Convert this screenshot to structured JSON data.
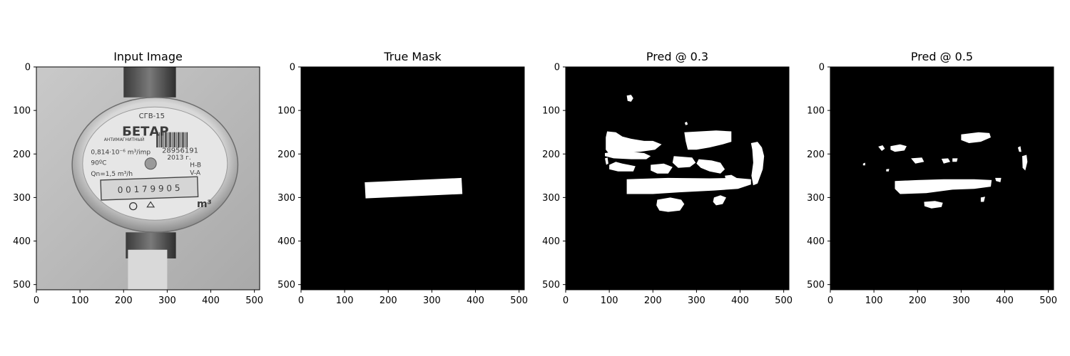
{
  "chart_data": [
    {
      "type": "image",
      "title": "Input Image",
      "xlim": [
        0,
        512
      ],
      "ylim": [
        512,
        0
      ],
      "xticks": [
        0,
        100,
        200,
        300,
        400,
        500
      ],
      "yticks": [
        0,
        100,
        200,
        300,
        400,
        500
      ],
      "image_text": {
        "model": "СГВ-15",
        "brand": "БЕТАР",
        "label": "АНТИМАГНИТНЫЙ",
        "serial": "28956191",
        "year": "2013 г.",
        "pulse": "0,814·10⁻⁶ m³/imp",
        "temp": "90ºC",
        "flow": "Qn=1,5 m³/h",
        "class1": "H-B",
        "class2": "V-A",
        "digits": "0 0 1 7 9 9 0 5",
        "unit": "m³"
      }
    },
    {
      "type": "image",
      "title": "True Mask",
      "xlim": [
        0,
        512
      ],
      "ylim": [
        512,
        0
      ],
      "xticks": [
        0,
        100,
        200,
        300,
        400,
        500
      ],
      "yticks": [
        0,
        100,
        200,
        300,
        400,
        500
      ],
      "mask_regions": [
        {
          "shape": "polygon",
          "points": [
            [
              146,
              265
            ],
            [
              368,
              255
            ],
            [
              370,
              292
            ],
            [
              148,
              302
            ]
          ]
        }
      ]
    },
    {
      "type": "image",
      "title": "Pred @ 0.3",
      "xlim": [
        0,
        512
      ],
      "ylim": [
        512,
        0
      ],
      "xticks": [
        0,
        100,
        200,
        300,
        400,
        500
      ],
      "yticks": [
        0,
        100,
        200,
        300,
        400,
        500
      ],
      "mask_regions": [
        {
          "shape": "polygon",
          "points": [
            [
              140,
              258
            ],
            [
              235,
              255
            ],
            [
              330,
              256
            ],
            [
              390,
              255
            ],
            [
              425,
              258
            ],
            [
              425,
              270
            ],
            [
              395,
              280
            ],
            [
              340,
              284
            ],
            [
              260,
              288
            ],
            [
              200,
              292
            ],
            [
              140,
              292
            ]
          ]
        },
        {
          "shape": "polygon",
          "points": [
            [
              92,
              162
            ],
            [
              95,
              148
            ],
            [
              115,
              150
            ],
            [
              130,
              160
            ],
            [
              150,
              165
            ],
            [
              180,
              170
            ],
            [
              200,
              170
            ],
            [
              220,
              178
            ],
            [
              205,
              190
            ],
            [
              170,
              195
            ],
            [
              130,
              198
            ],
            [
              100,
              200
            ],
            [
              92,
              190
            ]
          ]
        },
        {
          "shape": "polygon",
          "points": [
            [
              90,
              198
            ],
            [
              110,
              195
            ],
            [
              150,
              195
            ],
            [
              180,
              198
            ],
            [
              195,
              205
            ],
            [
              185,
              212
            ],
            [
              150,
              212
            ],
            [
              110,
              210
            ],
            [
              90,
              205
            ]
          ]
        },
        {
          "shape": "polygon",
          "points": [
            [
              272,
              150
            ],
            [
              345,
              146
            ],
            [
              380,
              148
            ],
            [
              380,
              172
            ],
            [
              360,
              178
            ],
            [
              330,
              185
            ],
            [
              300,
              190
            ],
            [
              280,
              190
            ],
            [
              275,
              170
            ]
          ]
        },
        {
          "shape": "polygon",
          "points": [
            [
              248,
              205
            ],
            [
              290,
              208
            ],
            [
              298,
              220
            ],
            [
              285,
              230
            ],
            [
              258,
              232
            ],
            [
              245,
              220
            ]
          ]
        },
        {
          "shape": "polygon",
          "points": [
            [
              305,
              212
            ],
            [
              335,
              215
            ],
            [
              355,
              220
            ],
            [
              365,
              235
            ],
            [
              355,
              245
            ],
            [
              330,
              240
            ],
            [
              310,
              232
            ],
            [
              300,
              222
            ]
          ]
        },
        {
          "shape": "polygon",
          "points": [
            [
              425,
              175
            ],
            [
              440,
              172
            ],
            [
              450,
              185
            ],
            [
              455,
              205
            ],
            [
              452,
              235
            ],
            [
              440,
              268
            ],
            [
              430,
              272
            ],
            [
              426,
              250
            ],
            [
              430,
              220
            ],
            [
              428,
              190
            ]
          ]
        },
        {
          "shape": "polygon",
          "points": [
            [
              100,
              225
            ],
            [
              115,
              218
            ],
            [
              130,
              222
            ],
            [
              145,
              225
            ],
            [
              160,
              228
            ],
            [
              155,
              240
            ],
            [
              120,
              240
            ],
            [
              100,
              235
            ]
          ]
        },
        {
          "shape": "polygon",
          "points": [
            [
              195,
              225
            ],
            [
              225,
              222
            ],
            [
              245,
              230
            ],
            [
              235,
              245
            ],
            [
              210,
              245
            ],
            [
              195,
              238
            ]
          ]
        },
        {
          "shape": "polygon",
          "points": [
            [
              210,
              305
            ],
            [
              240,
              300
            ],
            [
              265,
              305
            ],
            [
              272,
              315
            ],
            [
              262,
              330
            ],
            [
              235,
              333
            ],
            [
              215,
              330
            ],
            [
              208,
              318
            ]
          ]
        },
        {
          "shape": "polygon",
          "points": [
            [
              340,
              300
            ],
            [
              355,
              295
            ],
            [
              368,
              300
            ],
            [
              360,
              315
            ],
            [
              345,
              318
            ],
            [
              338,
              310
            ]
          ]
        },
        {
          "shape": "polygon",
          "points": [
            [
              365,
              250
            ],
            [
              380,
              248
            ],
            [
              392,
              255
            ],
            [
              385,
              265
            ],
            [
              368,
              262
            ]
          ]
        },
        {
          "shape": "polygon",
          "points": [
            [
              140,
              66
            ],
            [
              150,
              64
            ],
            [
              155,
              72
            ],
            [
              150,
              80
            ],
            [
              142,
              78
            ]
          ]
        },
        {
          "shape": "polygon",
          "points": [
            [
              273,
              128
            ],
            [
              278,
              126
            ],
            [
              280,
              132
            ],
            [
              275,
              134
            ]
          ]
        },
        {
          "shape": "polygon",
          "points": [
            [
              90,
              210
            ],
            [
              96,
              208
            ],
            [
              98,
              222
            ],
            [
              93,
              225
            ]
          ]
        }
      ]
    },
    {
      "type": "image",
      "title": "Pred @ 0.5",
      "xlim": [
        0,
        512
      ],
      "ylim": [
        512,
        0
      ],
      "xticks": [
        0,
        100,
        200,
        300,
        400,
        500
      ],
      "yticks": [
        0,
        100,
        200,
        300,
        400,
        500
      ],
      "mask_regions": [
        {
          "shape": "polygon",
          "points": [
            [
              148,
              262
            ],
            [
              200,
              260
            ],
            [
              260,
              258
            ],
            [
              330,
              258
            ],
            [
              370,
              260
            ],
            [
              368,
              275
            ],
            [
              330,
              280
            ],
            [
              280,
              282
            ],
            [
              220,
              290
            ],
            [
              160,
              292
            ],
            [
              148,
              280
            ]
          ]
        },
        {
          "shape": "polygon",
          "points": [
            [
              300,
              155
            ],
            [
              340,
              150
            ],
            [
              365,
              152
            ],
            [
              368,
              162
            ],
            [
              345,
              172
            ],
            [
              318,
              175
            ],
            [
              300,
              168
            ]
          ]
        },
        {
          "shape": "polygon",
          "points": [
            [
              110,
              183
            ],
            [
              120,
              180
            ],
            [
              125,
              188
            ],
            [
              118,
              193
            ]
          ]
        },
        {
          "shape": "polygon",
          "points": [
            [
              138,
              182
            ],
            [
              160,
              178
            ],
            [
              175,
              182
            ],
            [
              170,
              192
            ],
            [
              148,
              195
            ],
            [
              138,
              190
            ]
          ]
        },
        {
          "shape": "polygon",
          "points": [
            [
              185,
              210
            ],
            [
              210,
              208
            ],
            [
              215,
              218
            ],
            [
              195,
              222
            ]
          ]
        },
        {
          "shape": "polygon",
          "points": [
            [
              255,
              211
            ],
            [
              270,
              210
            ],
            [
              275,
              218
            ],
            [
              260,
              222
            ]
          ]
        },
        {
          "shape": "polygon",
          "points": [
            [
              280,
              210
            ],
            [
              292,
              210
            ],
            [
              290,
              218
            ],
            [
              280,
              218
            ]
          ]
        },
        {
          "shape": "polygon",
          "points": [
            [
              128,
              235
            ],
            [
              135,
              234
            ],
            [
              134,
              240
            ],
            [
              128,
              240
            ]
          ]
        },
        {
          "shape": "polygon",
          "points": [
            [
              440,
              205
            ],
            [
              450,
              202
            ],
            [
              452,
              218
            ],
            [
              447,
              238
            ],
            [
              441,
              232
            ]
          ]
        },
        {
          "shape": "polygon",
          "points": [
            [
              430,
              185
            ],
            [
              436,
              182
            ],
            [
              438,
              195
            ],
            [
              433,
              195
            ]
          ]
        },
        {
          "shape": "polygon",
          "points": [
            [
              215,
              310
            ],
            [
              240,
              308
            ],
            [
              258,
              312
            ],
            [
              255,
              322
            ],
            [
              232,
              325
            ],
            [
              216,
              320
            ]
          ]
        },
        {
          "shape": "polygon",
          "points": [
            [
              345,
              300
            ],
            [
              355,
              298
            ],
            [
              352,
              310
            ],
            [
              345,
              310
            ]
          ]
        },
        {
          "shape": "polygon",
          "points": [
            [
              378,
              255
            ],
            [
              392,
              255
            ],
            [
              390,
              265
            ],
            [
              380,
              262
            ]
          ]
        },
        {
          "shape": "polygon",
          "points": [
            [
              75,
              222
            ],
            [
              80,
              220
            ],
            [
              80,
              226
            ],
            [
              75,
              226
            ]
          ]
        }
      ]
    }
  ]
}
